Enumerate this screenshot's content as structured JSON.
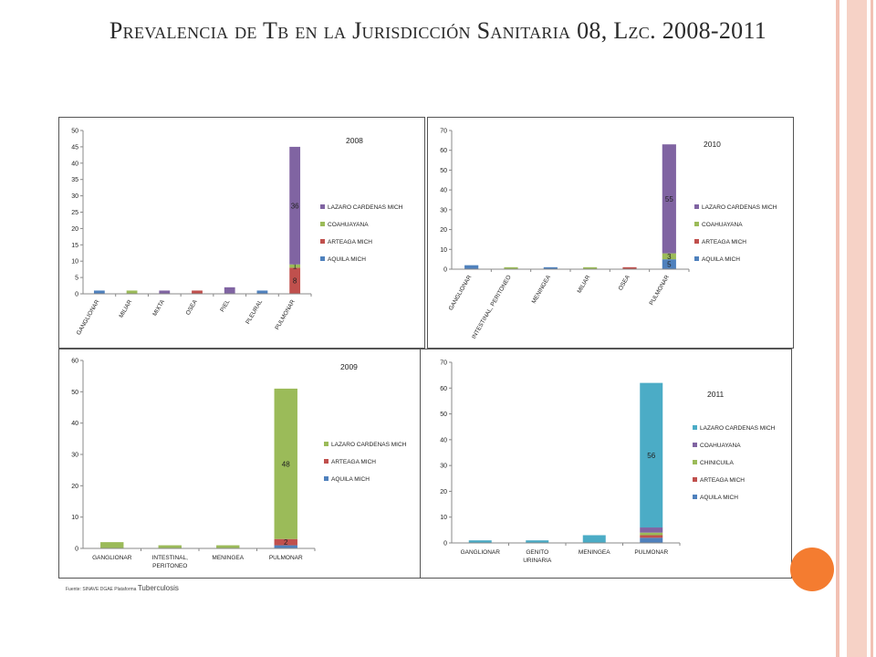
{
  "title": "Prevalencia de Tb en la Jurisdicción Sanitaria 08, Lzc. 2008-2011",
  "source": {
    "prefix": "Fuente: SINAVE DGAE Plataforma",
    "suffix": "Tuberculosis"
  },
  "colors": {
    "purple": "#8064a2",
    "green": "#9bbb59",
    "red": "#c0504d",
    "blue": "#4f81bd",
    "teal": "#4bacc6",
    "accent_bar": "#f2c1b4",
    "accent_circle": "#f47c30"
  },
  "chart_data": [
    {
      "type": "bar",
      "title": "2008",
      "categories": [
        "GANGLIONAR",
        "MILIAR",
        "MIXTA",
        "OSEA",
        "PIEL",
        "PLEURAL",
        "PULMONAR"
      ],
      "ylim": [
        0,
        50
      ],
      "yticks": [
        0,
        5,
        10,
        15,
        20,
        25,
        30,
        35,
        40,
        45,
        50
      ],
      "series": [
        {
          "name": "AQUILA MICH",
          "color": "#4f81bd",
          "values": [
            1,
            0,
            0,
            0,
            0,
            1,
            0
          ]
        },
        {
          "name": "ARTEAGA MICH",
          "color": "#c0504d",
          "values": [
            0,
            0,
            0,
            1,
            0,
            0,
            8
          ]
        },
        {
          "name": "COAHUAYANA",
          "color": "#9bbb59",
          "values": [
            0,
            1,
            0,
            0,
            0,
            0,
            1
          ]
        },
        {
          "name": "LAZARO CARDENAS MICH",
          "color": "#8064a2",
          "values": [
            0,
            0,
            1,
            0,
            2,
            0,
            36
          ]
        }
      ],
      "data_labels": [
        {
          "category": "PULMONAR",
          "series": "ARTEAGA MICH",
          "text": "8"
        },
        {
          "category": "PULMONAR",
          "series": "COAHUAYANA",
          "text": "1"
        },
        {
          "category": "PULMONAR",
          "series": "LAZARO CARDENAS MICH",
          "text": "36"
        }
      ],
      "legend_order": [
        "LAZARO CARDENAS MICH",
        "COAHUAYANA",
        "ARTEAGA MICH",
        "AQUILA MICH"
      ]
    },
    {
      "type": "bar",
      "title": "2010",
      "categories": [
        "GANGLIONAR",
        "INTESTINAL, PERITONEO",
        "MENINGEA",
        "MILIAR",
        "OSEA",
        "PULMONAR"
      ],
      "ylim": [
        0,
        70
      ],
      "yticks": [
        0,
        10,
        20,
        30,
        40,
        50,
        60,
        70
      ],
      "series": [
        {
          "name": "AQUILA MICH",
          "color": "#4f81bd",
          "values": [
            2,
            0,
            1,
            0,
            0,
            5
          ]
        },
        {
          "name": "ARTEAGA MICH",
          "color": "#c0504d",
          "values": [
            0,
            0,
            0,
            0,
            1,
            0
          ]
        },
        {
          "name": "COAHUAYANA",
          "color": "#9bbb59",
          "values": [
            0,
            1,
            0,
            1,
            0,
            3
          ]
        },
        {
          "name": "LAZARO CARDENAS MICH",
          "color": "#8064a2",
          "values": [
            0,
            0,
            0,
            0,
            0,
            55
          ]
        }
      ],
      "data_labels": [
        {
          "category": "PULMONAR",
          "series": "AQUILA MICH",
          "text": "5"
        },
        {
          "category": "PULMONAR",
          "series": "COAHUAYANA",
          "text": "3"
        },
        {
          "category": "PULMONAR",
          "series": "LAZARO CARDENAS MICH",
          "text": "55"
        }
      ],
      "legend_order": [
        "LAZARO CARDENAS MICH",
        "COAHUAYANA",
        "ARTEAGA MICH",
        "AQUILA MICH"
      ]
    },
    {
      "type": "bar",
      "title": "2009",
      "categories": [
        "GANGLIONAR",
        "INTESTINAL, PERITONEO",
        "MENINGEA",
        "PULMONAR"
      ],
      "ylim": [
        0,
        60
      ],
      "yticks": [
        0,
        10,
        20,
        30,
        40,
        50,
        60
      ],
      "series": [
        {
          "name": "AQUILA MICH",
          "color": "#4f81bd",
          "values": [
            0,
            0,
            0,
            1
          ]
        },
        {
          "name": "ARTEAGA MICH",
          "color": "#c0504d",
          "values": [
            0,
            0,
            0,
            2
          ]
        },
        {
          "name": "LAZARO CARDENAS MICH",
          "color": "#9bbb59",
          "values": [
            2,
            1,
            1,
            48
          ]
        }
      ],
      "data_labels": [
        {
          "category": "PULMONAR",
          "series": "ARTEAGA MICH",
          "text": "2"
        },
        {
          "category": "PULMONAR",
          "series": "LAZARO CARDENAS MICH",
          "text": "48"
        }
      ],
      "legend_order": [
        "LAZARO CARDENAS MICH",
        "ARTEAGA MICH",
        "AQUILA MICH"
      ]
    },
    {
      "type": "bar",
      "title": "2011",
      "categories": [
        "GANGLIONAR",
        "GENITO URINARIA",
        "MENINGEA",
        "PULMONAR"
      ],
      "ylim": [
        0,
        70
      ],
      "yticks": [
        0,
        10,
        20,
        30,
        40,
        50,
        60,
        70
      ],
      "series": [
        {
          "name": "AQUILA MICH",
          "color": "#4f81bd",
          "values": [
            0,
            0,
            0,
            2
          ]
        },
        {
          "name": "ARTEAGA MICH",
          "color": "#c0504d",
          "values": [
            0,
            0,
            0,
            1
          ]
        },
        {
          "name": "CHINICUILA",
          "color": "#9bbb59",
          "values": [
            0,
            0,
            0,
            1
          ]
        },
        {
          "name": "COAHUAYANA",
          "color": "#8064a2",
          "values": [
            0,
            0,
            0,
            2
          ]
        },
        {
          "name": "LAZARO CARDENAS MICH",
          "color": "#4bacc6",
          "values": [
            1,
            1,
            3,
            56
          ]
        }
      ],
      "data_labels": [
        {
          "category": "PULMONAR",
          "series": "LAZARO CARDENAS MICH",
          "text": "56"
        }
      ],
      "legend_order": [
        "LAZARO CARDENAS MICH",
        "COAHUAYANA",
        "CHINICUILA",
        "ARTEAGA MICH",
        "AQUILA MICH"
      ]
    }
  ]
}
